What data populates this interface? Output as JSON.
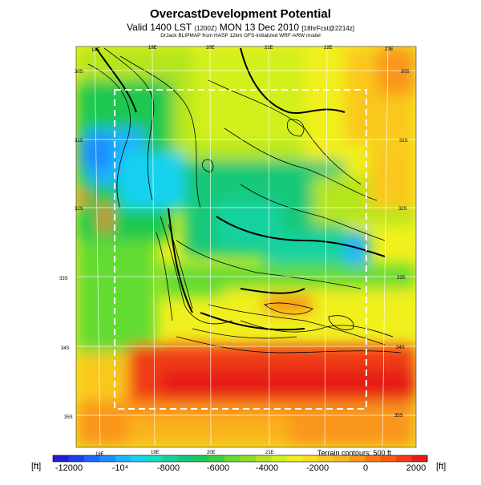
{
  "title": "OvercastDevelopment Potential",
  "subtitle_main": "Valid 1400 LST",
  "subtitle_small": "(1200Z)",
  "subtitle_date": "MON 13 Dec 2010",
  "subtitle_tail": "[18hrFcst@2214z]",
  "credit": "DrJack BLIPMAP from HASP 12km GFS-initialized WRF-ARW model",
  "terrain_note": "Terrain contours: 500 ft",
  "unit_label_left": "[ft]",
  "unit_label_right": "[ft]",
  "lon_labels_top": [
    "18E",
    "19E",
    "20E",
    "21E",
    "22E",
    "23E"
  ],
  "lon_labels_bottom": [
    "18E",
    "19E",
    "20E",
    "21E"
  ],
  "lat_labels_left": [
    "30S",
    "31S",
    "32S",
    "33S",
    "34S",
    "35S"
  ],
  "lat_labels_right": [
    "30S",
    "31S",
    "32S",
    "33S",
    "34S",
    "35S"
  ],
  "colorbar": {
    "ticks": [
      "-12000",
      "-10⁴",
      "-8000",
      "-6000",
      "-4000",
      "-2000",
      "0",
      "2000"
    ],
    "colors": [
      "#1e1ed2",
      "#1e3cf0",
      "#1e64ff",
      "#1e8cff",
      "#1eb4ff",
      "#14d2f0",
      "#14dcc8",
      "#14d2a0",
      "#14c878",
      "#1ec850",
      "#3cd23c",
      "#64dc32",
      "#8cdc28",
      "#b4e61e",
      "#d2f01e",
      "#f0f01e",
      "#fadc1e",
      "#fac81e",
      "#fab41e",
      "#fa961e",
      "#fa7814",
      "#fa5a14",
      "#f03c14",
      "#e61e14"
    ]
  },
  "colors": {
    "background": "#ffffff",
    "box": "#ffffff"
  }
}
